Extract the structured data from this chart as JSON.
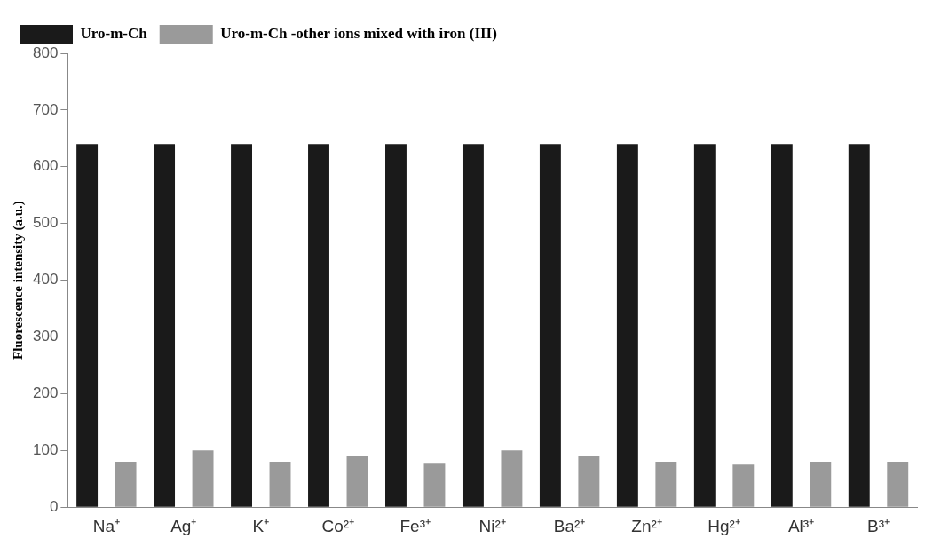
{
  "chart_data": {
    "type": "bar",
    "ylabel": "Fluorescence intensity (a.u.)",
    "categories": [
      "Na⁺",
      "Ag⁺",
      "K⁺",
      "Co²⁺",
      "Fe³⁺",
      "Ni²⁺",
      "Ba²⁺",
      "Zn²⁺",
      "Hg²⁺",
      "Al³⁺",
      "B³⁺"
    ],
    "series": [
      {
        "name": "Uro-m-Ch",
        "color": "#1a1a1a",
        "values": [
          640,
          640,
          640,
          640,
          640,
          640,
          640,
          640,
          640,
          640,
          640
        ]
      },
      {
        "name": "Uro-m-Ch -other ions mixed with iron (III)",
        "color": "#9a9a9a",
        "values": [
          80,
          100,
          80,
          90,
          78,
          100,
          90,
          80,
          75,
          80,
          80
        ]
      }
    ],
    "ylim": [
      0,
      800
    ],
    "yticks": [
      0,
      100,
      200,
      300,
      400,
      500,
      600,
      700,
      800
    ],
    "grid": false,
    "legend": "top"
  }
}
